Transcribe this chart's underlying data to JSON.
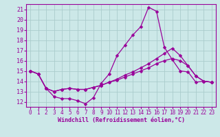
{
  "xlabel": "Windchill (Refroidissement éolien,°C)",
  "background_color": "#cce8e8",
  "grid_color": "#aacccc",
  "line_color": "#990099",
  "x_ticks": [
    0,
    1,
    2,
    3,
    4,
    5,
    6,
    7,
    8,
    9,
    10,
    11,
    12,
    13,
    14,
    15,
    16,
    17,
    18,
    19,
    20,
    21,
    22,
    23
  ],
  "y_ticks": [
    12,
    13,
    14,
    15,
    16,
    17,
    18,
    19,
    20,
    21
  ],
  "xlim": [
    -0.5,
    23.5
  ],
  "ylim": [
    11.5,
    21.5
  ],
  "line1_y": [
    15.0,
    14.7,
    13.3,
    12.5,
    12.3,
    12.3,
    12.1,
    11.8,
    12.4,
    13.8,
    14.7,
    16.5,
    17.5,
    18.5,
    19.3,
    21.2,
    20.8,
    17.3,
    16.1,
    15.0,
    14.9,
    13.9,
    14.0,
    13.9
  ],
  "line2_y": [
    15.0,
    14.7,
    13.3,
    13.0,
    13.2,
    13.3,
    13.2,
    13.2,
    13.4,
    13.6,
    13.9,
    14.2,
    14.6,
    14.9,
    15.3,
    15.7,
    16.2,
    16.7,
    17.2,
    16.5,
    15.5,
    14.5,
    14.0,
    13.9
  ],
  "line3_y": [
    15.0,
    14.7,
    13.3,
    13.0,
    13.2,
    13.3,
    13.2,
    13.2,
    13.4,
    13.6,
    13.9,
    14.1,
    14.4,
    14.7,
    15.0,
    15.3,
    15.7,
    16.0,
    16.2,
    16.0,
    15.5,
    14.5,
    14.0,
    13.9
  ]
}
